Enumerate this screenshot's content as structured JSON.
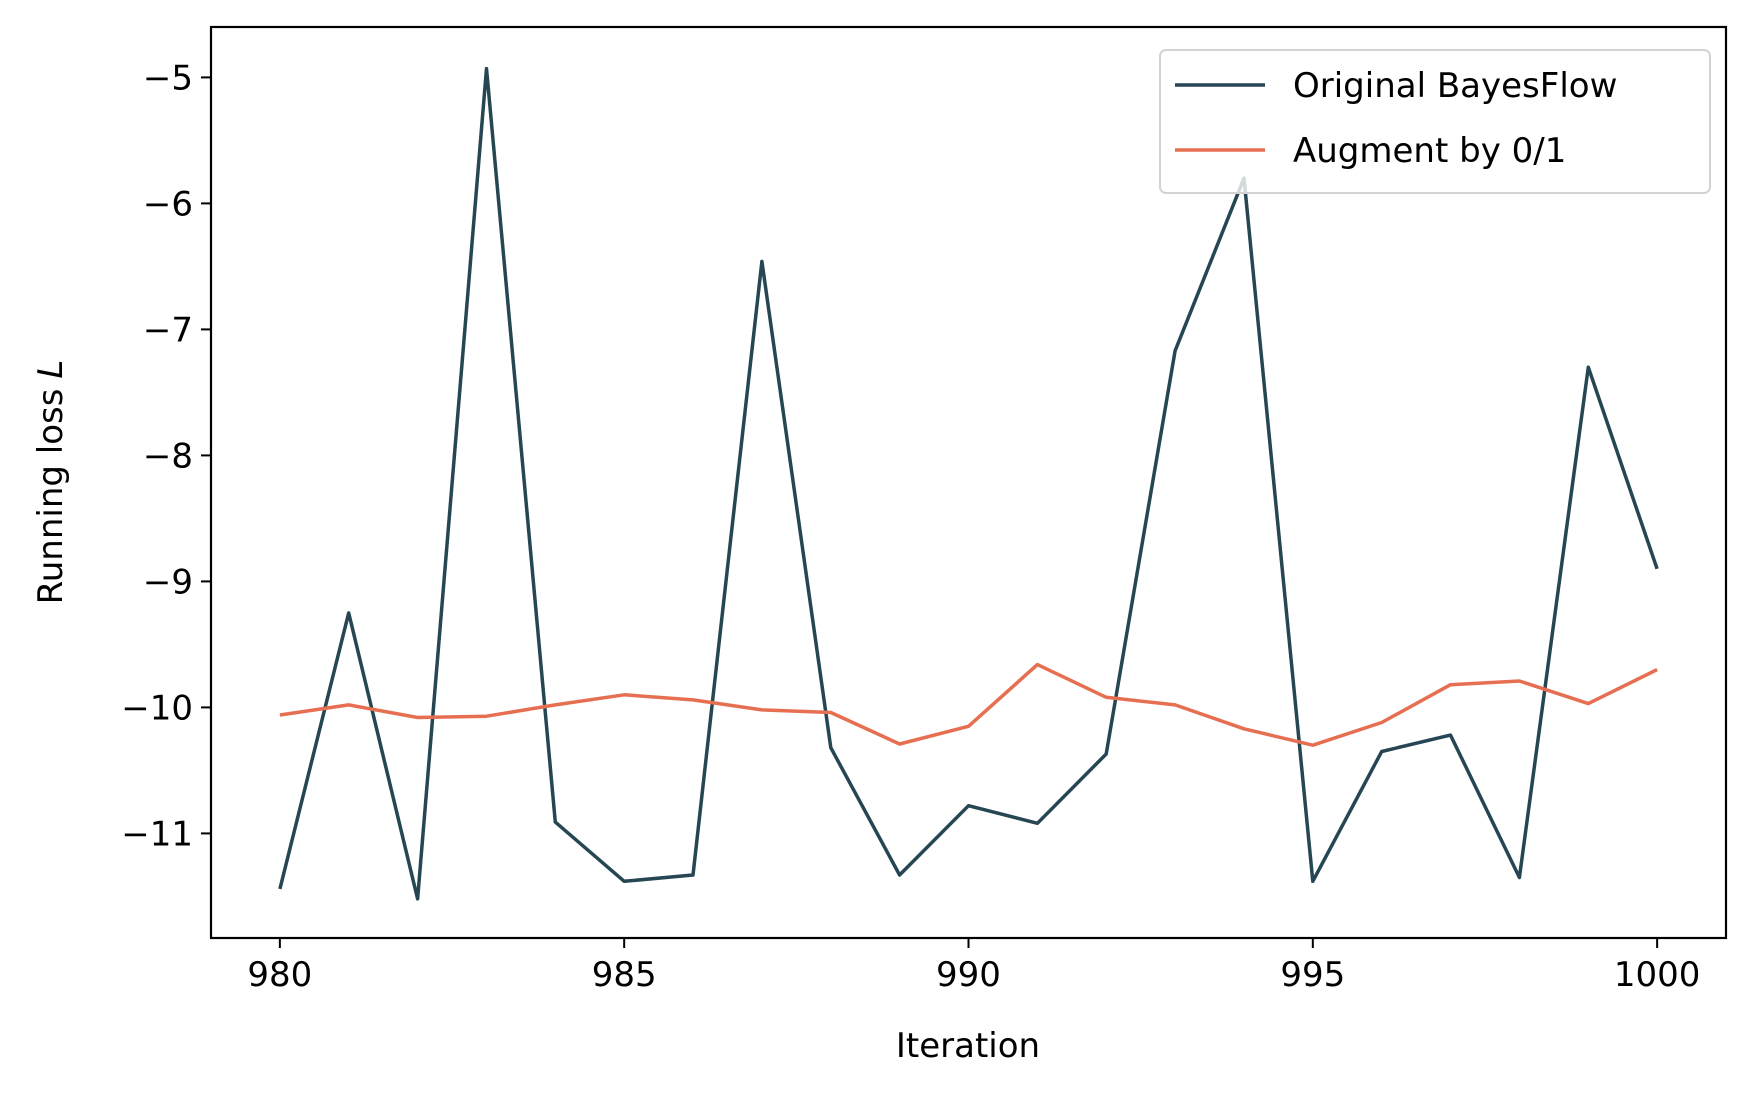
{
  "chart_data": {
    "type": "line",
    "title": "",
    "xlabel": "Iteration",
    "ylabel": "Running loss",
    "ylabel_symbol": "L",
    "xlim": [
      979,
      1001
    ],
    "ylim": [
      -11.83,
      -4.6
    ],
    "xticks": [
      980,
      985,
      990,
      995,
      1000
    ],
    "xtick_labels": [
      "980",
      "985",
      "990",
      "995",
      "1000"
    ],
    "yticks": [
      -11,
      -10,
      -9,
      -8,
      -7,
      -6,
      -5
    ],
    "ytick_labels": [
      "−11",
      "−10",
      "−9",
      "−8",
      "−7",
      "−6",
      "−5"
    ],
    "grid": false,
    "legend_position": "top-right",
    "x": [
      980,
      981,
      982,
      983,
      984,
      985,
      986,
      987,
      988,
      989,
      990,
      991,
      992,
      993,
      994,
      995,
      996,
      997,
      998,
      999,
      1000
    ],
    "series": [
      {
        "name": "Original BayesFlow",
        "color": "#264653",
        "values": [
          -11.44,
          -9.25,
          -11.52,
          -4.93,
          -10.91,
          -11.38,
          -11.33,
          -6.46,
          -10.32,
          -11.33,
          -10.78,
          -10.92,
          -10.37,
          -7.17,
          -5.8,
          -11.38,
          -10.35,
          -10.22,
          -11.35,
          -7.3,
          -8.9
        ]
      },
      {
        "name": "Augment by 0/1",
        "color": "#E76F51",
        "values": [
          -10.06,
          -9.98,
          -10.08,
          -10.07,
          -9.98,
          -9.9,
          -9.94,
          -10.02,
          -10.04,
          -10.29,
          -10.15,
          -9.66,
          -9.92,
          -9.98,
          -10.17,
          -10.3,
          -10.12,
          -9.82,
          -9.79,
          -9.97,
          -9.7
        ]
      }
    ]
  }
}
